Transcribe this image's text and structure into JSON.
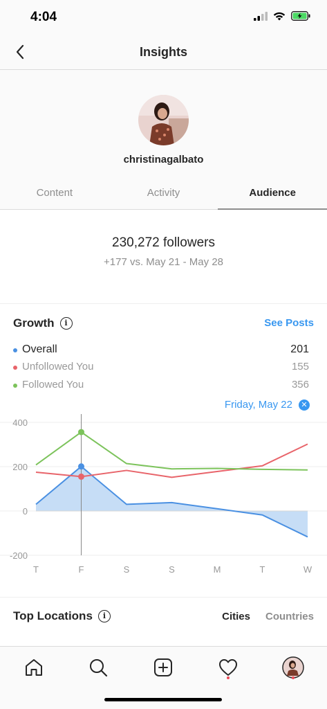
{
  "status_bar": {
    "time": "4:04"
  },
  "nav": {
    "title": "Insights",
    "back_icon": "chevron-left-icon"
  },
  "profile": {
    "username": "christinagalbato"
  },
  "tabs": [
    {
      "label": "Content",
      "active": false
    },
    {
      "label": "Activity",
      "active": false
    },
    {
      "label": "Audience",
      "active": true
    }
  ],
  "followers": {
    "count_text": "230,272 followers",
    "delta_text": "+177 vs. May 21 - May 28"
  },
  "growth": {
    "title": "Growth",
    "see_posts": "See Posts",
    "legend": [
      {
        "label": "Overall",
        "value": "201",
        "color": "#4a90e2"
      },
      {
        "label": "Unfollowed You",
        "value": "155",
        "color": "#e8646a"
      },
      {
        "label": "Followed You",
        "value": "356",
        "color": "#7cc35b"
      }
    ],
    "selected_date": "Friday, May 22"
  },
  "chart_data": {
    "type": "line",
    "categories": [
      "T",
      "F",
      "S",
      "S",
      "M",
      "T",
      "W"
    ],
    "series": [
      {
        "name": "Overall",
        "color": "#4a90e2",
        "values": [
          30,
          201,
          30,
          38,
          10,
          -18,
          -117
        ]
      },
      {
        "name": "Unfollowed You",
        "color": "#e8646a",
        "values": [
          175,
          155,
          183,
          152,
          178,
          204,
          302
        ]
      },
      {
        "name": "Followed You",
        "color": "#7cc35b",
        "values": [
          208,
          356,
          214,
          190,
          192,
          188,
          185
        ]
      }
    ],
    "y_ticks": [
      "400",
      "200",
      "0",
      "-200"
    ],
    "ylim": [
      -200,
      400
    ],
    "selected_index": 1,
    "grid": true
  },
  "locations": {
    "title": "Top Locations",
    "tab_cities": "Cities",
    "tab_countries": "Countries"
  },
  "tab_bar": {
    "items": [
      "home-icon",
      "search-icon",
      "new-post-icon",
      "activity-heart-icon",
      "profile-avatar"
    ]
  }
}
